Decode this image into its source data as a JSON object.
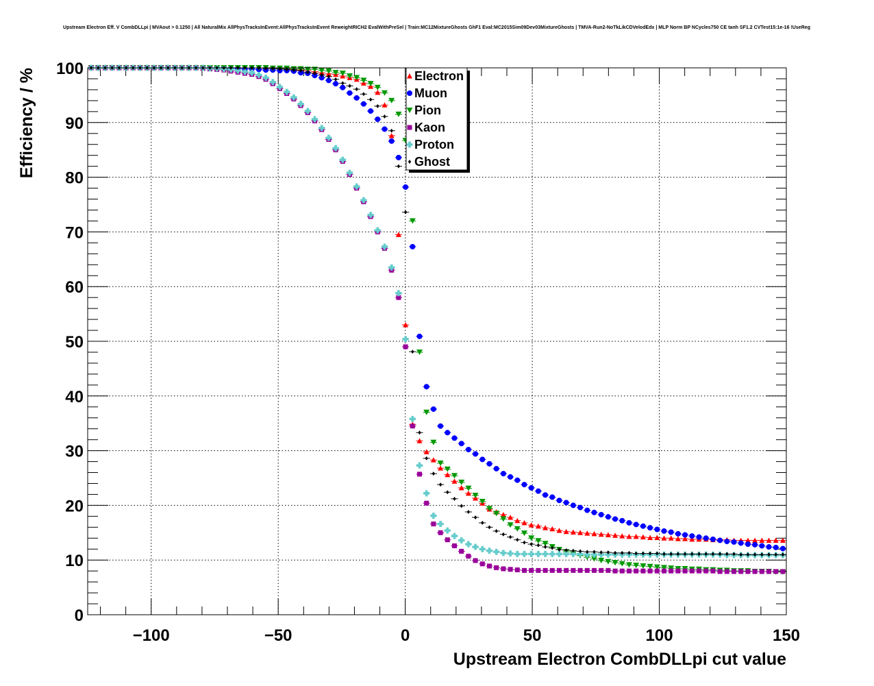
{
  "chart_data": {
    "type": "scatter",
    "title": "Upstream Electron Eff. V CombDLLpi | MVAout > 0.1250 | All NaturalMix AllPhysTracksInEvent:AllPhysTracksInEvent ReweightRICH2 EvalWithPreSel | Train:MC12MixtureGhosts GhF1 Eval:MC2015Sim09Dev03MixtureGhosts | TMVA-Run2-NoTkLikCDVelodEdx | MLP Norm BP NCycles750 CE tanh SF1.2 CVTest15:1e-16 !UseReg",
    "xlabel": "Upstream Electron CombDLLpi cut value",
    "ylabel": "Efficiency / %",
    "xlim": [
      -125,
      150
    ],
    "ylim": [
      0,
      100
    ],
    "x_ticks": [
      -100,
      -50,
      0,
      50,
      100,
      150
    ],
    "x_tick_labels": [
      "−100",
      "−50",
      "0",
      "50",
      "100",
      "150"
    ],
    "y_ticks": [
      0,
      10,
      20,
      30,
      40,
      50,
      60,
      70,
      80,
      90,
      100
    ],
    "y_tick_labels": [
      "0",
      "10",
      "20",
      "30",
      "40",
      "50",
      "60",
      "70",
      "80",
      "90",
      "100"
    ],
    "grid": true,
    "legend_position": "top-center",
    "bin_start": -125,
    "bin_width": 2.75,
    "series": [
      {
        "name": "Electron",
        "color": "#ff0000",
        "marker": "triangle-up",
        "values": [
          100,
          100,
          100,
          100,
          100,
          100,
          100,
          100,
          100,
          100,
          100,
          100,
          100,
          100,
          100,
          100,
          100,
          100,
          100,
          100,
          100,
          100,
          100,
          100,
          100,
          99.9,
          99.9,
          99.8,
          99.8,
          99.7,
          99.6,
          99.5,
          99.3,
          99.1,
          98.9,
          98.8,
          98.5,
          98.2,
          97.9,
          97.2,
          96.6,
          95.5,
          93.2,
          87.6,
          69.5,
          53.0,
          34.8,
          31.8,
          29.8,
          28.3,
          26.8,
          25.6,
          24.4,
          23.2,
          22.2,
          21.3,
          20.4,
          19.3,
          18.8,
          18.3,
          17.8,
          17.2,
          16.8,
          16.4,
          16.2,
          15.9,
          15.7,
          15.4,
          15.2,
          15.1,
          15.0,
          14.9,
          14.8,
          14.7,
          14.6,
          14.5,
          14.4,
          14.3,
          14.3,
          14.2,
          14.1,
          14.1,
          14.0,
          14.0,
          13.9,
          13.9,
          13.8,
          13.8,
          13.8,
          13.7,
          13.7,
          13.7,
          13.6,
          13.6,
          13.6,
          13.6,
          13.6,
          13.6,
          13.6,
          13.6
        ]
      },
      {
        "name": "Muon",
        "color": "#0000ff",
        "marker": "circle",
        "values": [
          100,
          100,
          100,
          100,
          100,
          100,
          100,
          100,
          100,
          100,
          100,
          100,
          100,
          100,
          100,
          100,
          100,
          100,
          100,
          100,
          99.9,
          99.9,
          99.8,
          99.8,
          99.7,
          99.6,
          99.6,
          99.5,
          99.5,
          99.4,
          99.1,
          99.0,
          98.6,
          98.2,
          97.7,
          97.1,
          96.4,
          95.4,
          94.5,
          93.4,
          92.1,
          90.6,
          88.8,
          86.6,
          83.6,
          78.2,
          67.3,
          50.9,
          41.7,
          37.6,
          34.5,
          33.3,
          32.3,
          31.3,
          30.2,
          29.4,
          28.4,
          27.6,
          26.7,
          25.8,
          25.2,
          24.6,
          23.8,
          23.2,
          22.6,
          21.9,
          21.5,
          20.9,
          20.5,
          20.0,
          19.6,
          19.1,
          18.7,
          18.3,
          17.9,
          17.5,
          17.2,
          16.8,
          16.5,
          16.2,
          15.9,
          15.6,
          15.3,
          15.1,
          14.8,
          14.6,
          14.4,
          14.2,
          14.0,
          13.8,
          13.6,
          13.4,
          13.3,
          13.1,
          12.9,
          12.8,
          12.6,
          12.4,
          12.3,
          12.1
        ]
      },
      {
        "name": "Pion",
        "color": "#009900",
        "marker": "triangle-down",
        "values": [
          100,
          100,
          100,
          100,
          100,
          100,
          100,
          100,
          100,
          100,
          100,
          100,
          100,
          100,
          100,
          100,
          100,
          100,
          100,
          100,
          100,
          100,
          100,
          100,
          100,
          100,
          99.9,
          99.9,
          99.9,
          99.8,
          99.8,
          99.7,
          99.7,
          99.5,
          99.4,
          99.1,
          99.0,
          98.5,
          98.2,
          97.7,
          97.1,
          96.4,
          95.4,
          94.0,
          91.5,
          86.7,
          72.0,
          48.0,
          37.0,
          31.5,
          27.7,
          26.6,
          25.4,
          24.2,
          23.1,
          21.8,
          20.7,
          19.4,
          18.5,
          17.5,
          16.4,
          15.7,
          14.9,
          14.0,
          13.5,
          13.0,
          12.4,
          11.9,
          11.5,
          11.1,
          10.8,
          10.5,
          10.2,
          9.9,
          9.7,
          9.5,
          9.3,
          9.1,
          9.0,
          8.9,
          8.8,
          8.7,
          8.6,
          8.5,
          8.4,
          8.4,
          8.3,
          8.3,
          8.2,
          8.2,
          8.1,
          8.1,
          8.0,
          8.0,
          8.0,
          7.9,
          7.9,
          7.9,
          7.8,
          7.8
        ]
      },
      {
        "name": "Kaon",
        "color": "#990099",
        "marker": "square",
        "values": [
          100,
          100,
          100,
          100,
          100,
          100,
          100,
          100,
          100,
          100,
          100,
          100,
          100,
          100,
          100,
          100,
          99.9,
          99.8,
          99.7,
          99.6,
          99.4,
          99.2,
          99.0,
          98.8,
          98.4,
          97.9,
          97.1,
          96.2,
          95.3,
          94.3,
          93.1,
          91.8,
          90.3,
          88.7,
          86.9,
          85.0,
          82.9,
          80.5,
          78.0,
          75.5,
          72.8,
          70.0,
          67.0,
          63.0,
          58.0,
          49.0,
          34.5,
          25.7,
          20.4,
          16.6,
          15.0,
          13.7,
          12.6,
          11.6,
          10.7,
          9.9,
          9.3,
          8.9,
          8.6,
          8.4,
          8.3,
          8.2,
          8.1,
          8.1,
          8.1,
          8.1,
          8.1,
          8.1,
          8.1,
          8.1,
          8.1,
          8.1,
          8.1,
          8.1,
          8.1,
          8.0,
          8.0,
          8.0,
          8.0,
          8.0,
          8.0,
          8.0,
          8.0,
          8.0,
          8.0,
          8.0,
          8.0,
          8.0,
          8.0,
          8.0,
          7.9,
          7.9,
          7.9,
          7.9,
          7.9,
          7.9,
          7.9,
          7.9,
          7.9,
          7.9
        ]
      },
      {
        "name": "Proton",
        "color": "#66cccc",
        "marker": "cross",
        "values": [
          100,
          100,
          100,
          100,
          100,
          100,
          100,
          100,
          100,
          100,
          100,
          100,
          100,
          100,
          100,
          100,
          100,
          99.9,
          99.9,
          99.8,
          99.7,
          99.5,
          99.3,
          99.1,
          98.7,
          98.2,
          97.4,
          96.5,
          95.6,
          94.6,
          93.4,
          92.1,
          90.6,
          89.0,
          87.2,
          85.3,
          83.2,
          80.8,
          78.3,
          75.8,
          73.1,
          70.3,
          67.3,
          63.5,
          58.8,
          50.4,
          35.8,
          27.3,
          22.2,
          18.1,
          16.6,
          15.4,
          14.4,
          13.6,
          12.9,
          12.4,
          12.0,
          11.7,
          11.5,
          11.3,
          11.2,
          11.1,
          11.1,
          11.1,
          11.1,
          11.1,
          11.1,
          11.1,
          11.1,
          11.1,
          11.1,
          11.0,
          11.0,
          11.0,
          11.0,
          11.0,
          11.0,
          11.0,
          11.0,
          11.0,
          11.0,
          11.0,
          11.0,
          11.0,
          11.0,
          11.0,
          11.0,
          11.0,
          11.0,
          11.0,
          11.0,
          10.9,
          10.9,
          10.9,
          10.9,
          10.9,
          10.9,
          10.9,
          10.9,
          10.9
        ]
      },
      {
        "name": "Ghost",
        "color": "#000000",
        "marker": "diamond",
        "values": [
          100,
          100,
          100,
          100,
          100,
          100,
          100,
          100,
          100,
          100,
          100,
          100,
          100,
          100,
          100,
          100,
          100,
          100,
          100,
          100,
          100,
          100,
          100,
          100,
          100,
          99.9,
          99.9,
          99.8,
          99.7,
          99.6,
          99.5,
          99.2,
          99.0,
          98.7,
          98.4,
          97.9,
          97.2,
          96.7,
          96.1,
          95.2,
          94.2,
          93.0,
          91.1,
          88.5,
          82.0,
          73.6,
          48.1,
          33.3,
          28.6,
          25.8,
          23.8,
          22.4,
          21.2,
          19.9,
          18.8,
          17.8,
          16.8,
          16.0,
          15.3,
          14.7,
          14.2,
          13.7,
          13.2,
          12.9,
          12.7,
          12.4,
          12.2,
          11.9,
          11.8,
          11.7,
          11.6,
          11.5,
          11.5,
          11.4,
          11.4,
          11.3,
          11.3,
          11.3,
          11.2,
          11.2,
          11.2,
          11.2,
          11.1,
          11.1,
          11.1,
          11.1,
          11.1,
          11.1,
          11.1,
          11.1,
          11.1,
          11.1,
          11.1,
          11.0,
          11.0,
          11.0,
          11.0,
          11.0,
          11.0,
          11.0
        ]
      }
    ]
  }
}
